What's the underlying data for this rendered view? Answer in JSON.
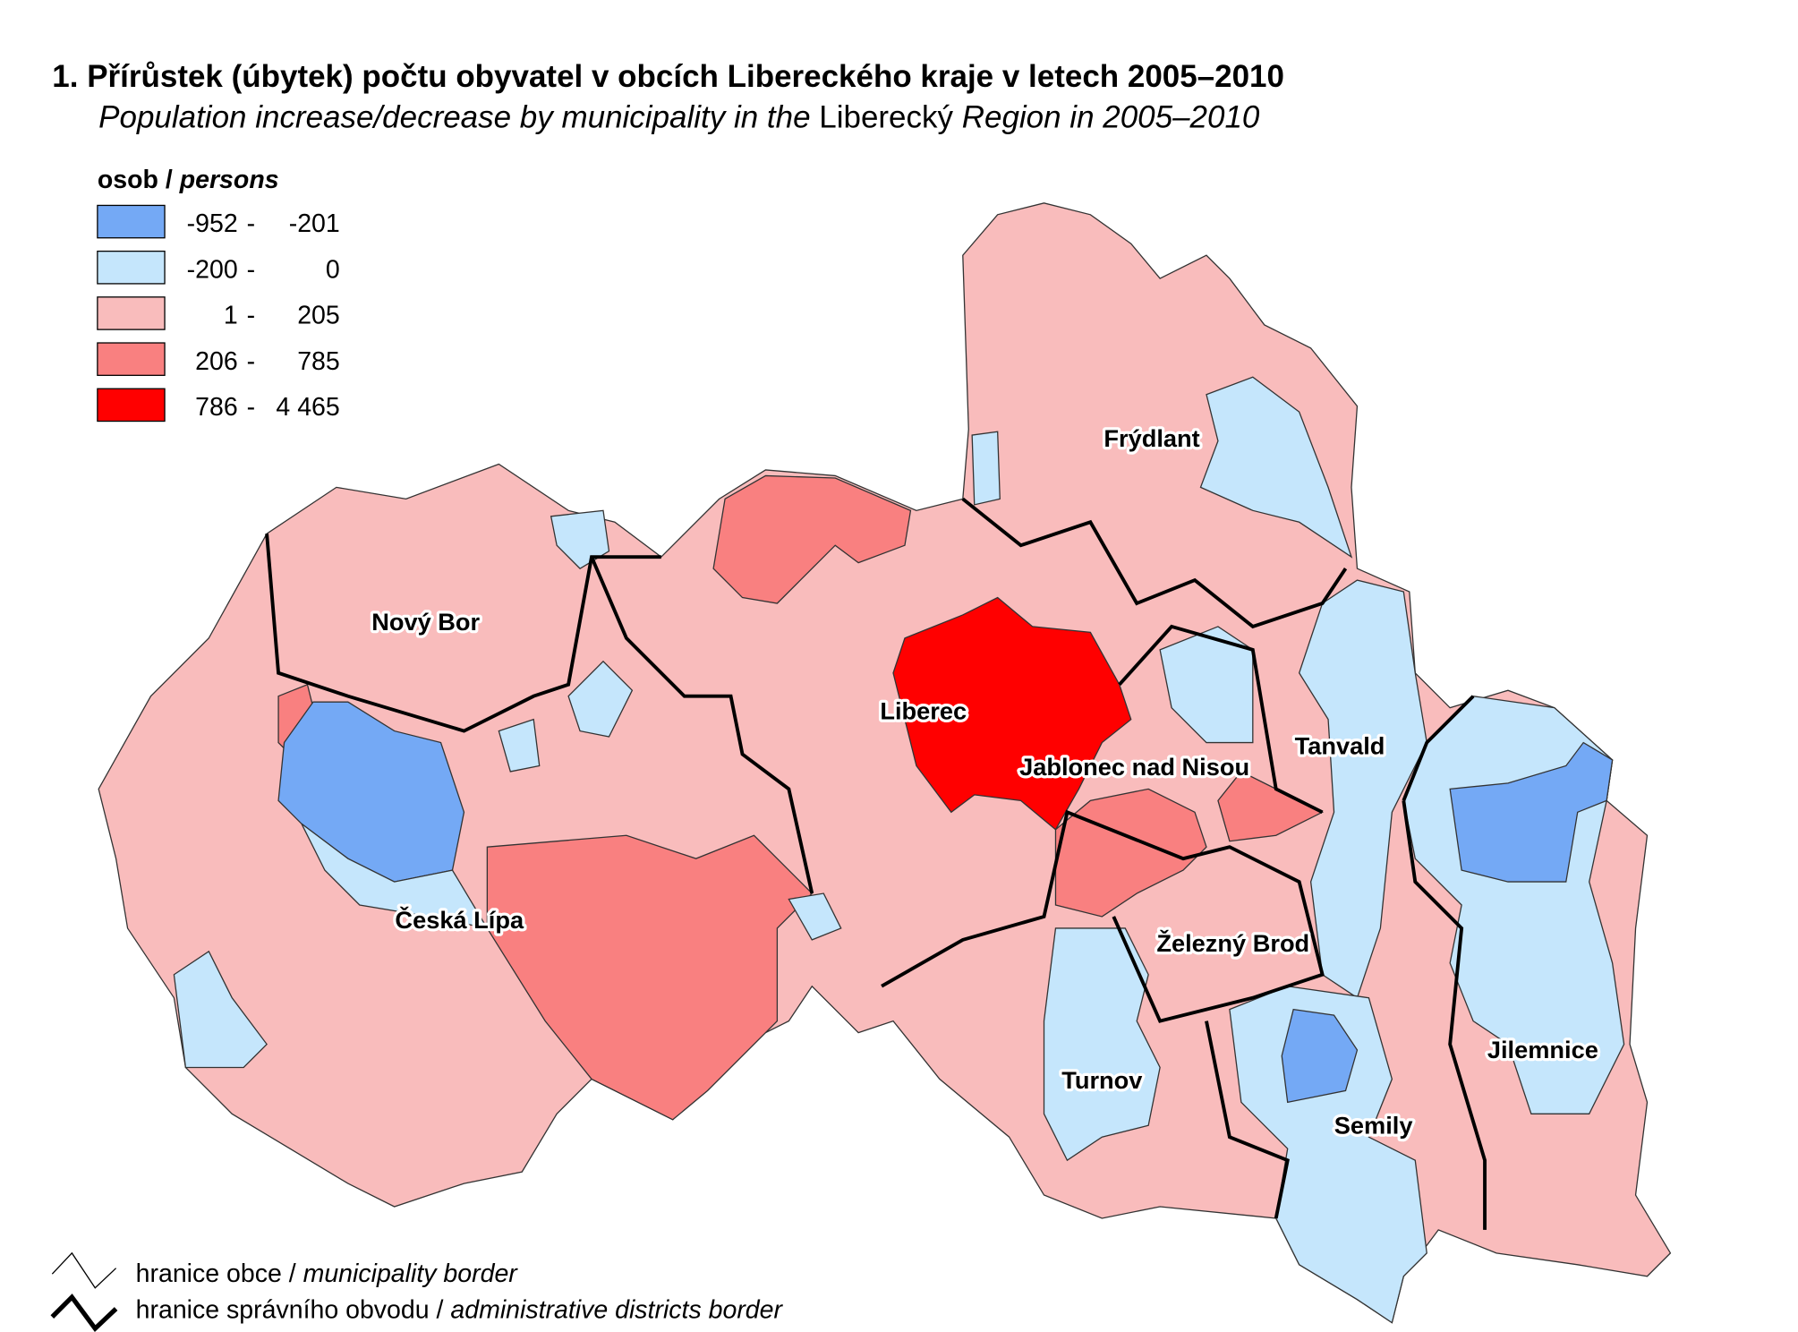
{
  "title": "1. Přírůstek (úbytek) počtu obyvatel v obcích Libereckého kraje v letech 2005–2010",
  "subtitle": [
    "Population increase/decrease by municipality in the ",
    "Liberecký",
    " Region in 2005–2010"
  ],
  "legend": {
    "title": [
      "osob / ",
      "persons"
    ],
    "separator": "-",
    "items": [
      {
        "from": "-952",
        "to": "-201",
        "color": "#74a9f5"
      },
      {
        "from": "-200",
        "to": "0",
        "color": "#c5e6fc"
      },
      {
        "from": "1",
        "to": "205",
        "color": "#f9bcbc"
      },
      {
        "from": "206",
        "to": "785",
        "color": "#f98080"
      },
      {
        "from": "786",
        "to": "4 465",
        "color": "#ff0000"
      }
    ]
  },
  "districts": [
    "Frýdlant",
    "Nový Bor",
    "Liberec",
    "Jablonec nad Nisou",
    "Tanvald",
    "Česká Lípa",
    "Železný Brod",
    "Turnov",
    "Semily",
    "Jilemnice"
  ],
  "border_legend": [
    [
      "hranice obce / ",
      "municipality border"
    ],
    [
      "hranice správního obvodu / ",
      "administrative districts border"
    ]
  ]
}
